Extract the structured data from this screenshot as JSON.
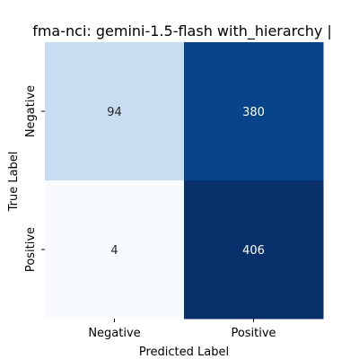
{
  "chart_data": {
    "type": "heatmap",
    "title": "fma-nci: gemini-1.5-flash with_hierarchy |",
    "xlabel": "Predicted Label",
    "ylabel": "True Label",
    "x_categories": [
      "Negative",
      "Positive"
    ],
    "y_categories": [
      "Negative",
      "Positive"
    ],
    "values": [
      [
        94,
        380
      ],
      [
        4,
        406
      ]
    ],
    "colormap": "Blues",
    "colorbar": false,
    "grid": false,
    "cell_colors": [
      [
        "#c9ddf1",
        "#084489"
      ],
      [
        "#f7fbff",
        "#08306b"
      ]
    ],
    "text_colors": [
      [
        "#262626",
        "#ffffff"
      ],
      [
        "#262626",
        "#ffffff"
      ]
    ]
  }
}
